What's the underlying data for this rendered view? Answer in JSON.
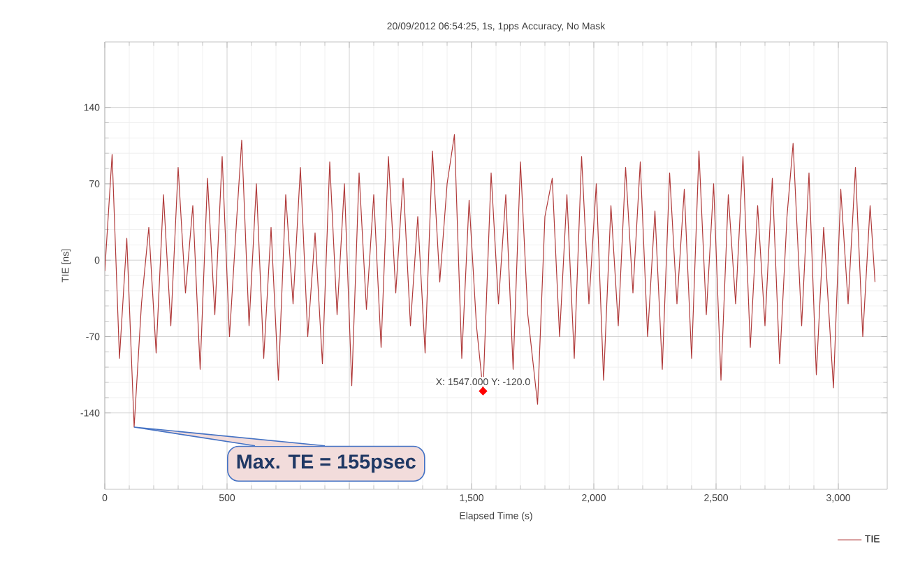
{
  "chart_data": {
    "type": "line",
    "title": "20/09/2012 06:54:25, 1s, 1pps Accuracy, No Mask",
    "xlabel": "Elapsed Time (s)",
    "ylabel": "TIE [ns]",
    "xlim": [
      0,
      3200
    ],
    "ylim": [
      -210,
      200
    ],
    "xticks": [
      0,
      500,
      {
        "value": 1000,
        "label": null
      },
      {
        "value": 1500,
        "label": "1,500"
      },
      {
        "value": 2000,
        "label": "2,000"
      },
      {
        "value": 2500,
        "label": "2,500"
      },
      {
        "value": 3000,
        "label": "3,000"
      }
    ],
    "yticks": [
      -140,
      -70,
      0,
      70,
      140
    ],
    "grid": true,
    "legend": "bottom right",
    "marker": "none",
    "line_style": "solid",
    "series": [
      {
        "name": "TIE",
        "color": "#b03a3a",
        "x": [
          0,
          30,
          60,
          90,
          120,
          150,
          180,
          210,
          240,
          270,
          300,
          330,
          360,
          390,
          420,
          450,
          480,
          510,
          540,
          560,
          590,
          620,
          650,
          680,
          710,
          740,
          770,
          800,
          830,
          860,
          890,
          920,
          950,
          980,
          1010,
          1040,
          1070,
          1100,
          1130,
          1160,
          1190,
          1220,
          1250,
          1280,
          1310,
          1340,
          1370,
          1400,
          1430,
          1460,
          1490,
          1520,
          1547,
          1580,
          1610,
          1640,
          1670,
          1700,
          1730,
          1770,
          1800,
          1830,
          1860,
          1890,
          1920,
          1950,
          1980,
          2010,
          2040,
          2070,
          2100,
          2130,
          2160,
          2190,
          2220,
          2250,
          2280,
          2310,
          2340,
          2370,
          2400,
          2430,
          2460,
          2490,
          2520,
          2550,
          2580,
          2610,
          2640,
          2670,
          2700,
          2730,
          2760,
          2790,
          2815,
          2850,
          2880,
          2910,
          2940,
          2980,
          3010,
          3040,
          3070,
          3100,
          3130,
          3150
        ],
        "values": [
          -10,
          97,
          -90,
          20,
          -153,
          -40,
          30,
          -85,
          60,
          -60,
          85,
          -30,
          50,
          -100,
          75,
          -50,
          95,
          -70,
          40,
          110,
          -60,
          70,
          -90,
          30,
          -110,
          60,
          -40,
          85,
          -70,
          25,
          -95,
          90,
          -50,
          70,
          -115,
          80,
          -45,
          60,
          -80,
          95,
          -30,
          75,
          -60,
          40,
          -85,
          100,
          -20,
          70,
          115,
          -90,
          55,
          -60,
          -120,
          80,
          -40,
          60,
          -100,
          90,
          -50,
          -132,
          40,
          75,
          -70,
          60,
          -90,
          95,
          -40,
          70,
          -110,
          50,
          -60,
          85,
          -30,
          90,
          -70,
          45,
          -100,
          80,
          -40,
          65,
          -90,
          100,
          -50,
          70,
          -110,
          60,
          -40,
          95,
          -80,
          50,
          -60,
          75,
          -95,
          40,
          107,
          -60,
          80,
          -105,
          30,
          -117,
          65,
          -40,
          85,
          -70,
          50,
          -20
        ]
      }
    ],
    "annotations": [
      {
        "text": "X: 1547.000 Y: -120.0",
        "x": 1547,
        "y": -120
      },
      {
        "text": "Max. TE = 155psec",
        "x": 120,
        "y": -153
      }
    ]
  }
}
